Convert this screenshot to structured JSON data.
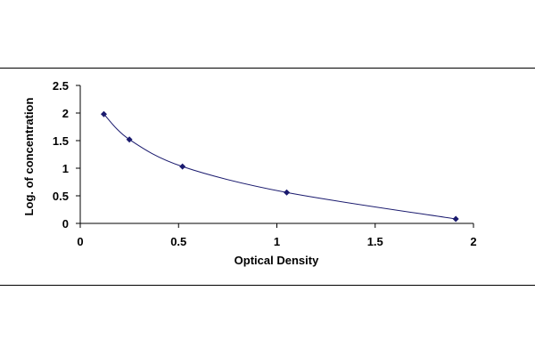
{
  "chart_data": {
    "type": "scatter",
    "title": "",
    "xlabel": "Optical Density",
    "ylabel": "Log. of concentration",
    "xlim": [
      0,
      2
    ],
    "ylim": [
      0,
      2.5
    ],
    "x_ticks": [
      0,
      0.5,
      1,
      1.5,
      2
    ],
    "x_tick_labels": [
      "0",
      "0.5",
      "1",
      "1.5",
      "2"
    ],
    "y_ticks": [
      0,
      0.5,
      1,
      1.5,
      2,
      2.5
    ],
    "y_tick_labels": [
      "0",
      "0.5",
      "1",
      "1.5",
      "2",
      "2.5"
    ],
    "grid": false,
    "legend": "none",
    "trendline": "smooth",
    "series": [
      {
        "x": [
          0.12,
          0.25,
          0.52,
          1.05,
          1.91
        ],
        "y": [
          1.98,
          1.52,
          1.03,
          0.56,
          0.08
        ],
        "marker": "diamond",
        "color": "#1a1a6e"
      }
    ]
  }
}
